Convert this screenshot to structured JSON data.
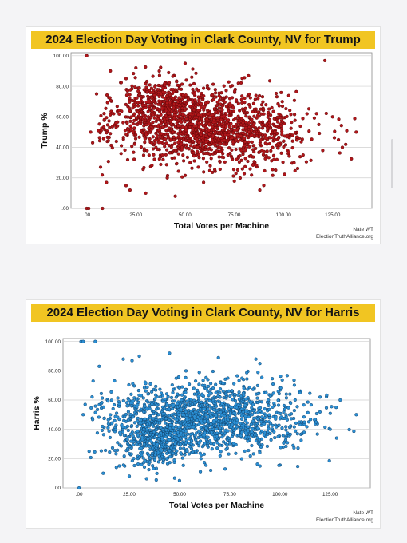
{
  "chart_data": [
    {
      "type": "scatter",
      "title": "2024 Election Day Voting in Clark County, NV for Trump",
      "xlabel": "Total Votes per Machine",
      "ylabel": "Trump %",
      "xticks": [
        ".00",
        "25.00",
        "50.00",
        "75.00",
        "100.00",
        "125.00"
      ],
      "yticks": [
        ".00",
        "20.00",
        "40.00",
        "60.00",
        "80.00",
        "100.00"
      ],
      "xlim": [
        -8,
        145
      ],
      "ylim": [
        0,
        102
      ],
      "grid": "horizontal",
      "marker_color": "#b0161a",
      "marker_edge": "#5a0607",
      "credit_line1": "Nate WT",
      "credit_line2": "ElectionTruthAlliance.org",
      "cluster": {
        "center_x": 62,
        "center_y": 52,
        "spread_x": 24,
        "spread_y": 12,
        "n": 1700,
        "seed": 11,
        "upper_lobe_x": 38,
        "upper_lobe_y": 70
      },
      "points": [
        [
          0,
          100
        ],
        [
          0,
          0
        ],
        [
          1,
          0
        ],
        [
          8,
          0
        ],
        [
          2,
          50
        ],
        [
          3,
          43
        ],
        [
          5,
          75
        ],
        [
          7,
          27
        ],
        [
          10,
          17
        ],
        [
          12,
          90
        ],
        [
          137,
          50
        ],
        [
          130,
          40
        ],
        [
          128,
          45
        ],
        [
          120,
          38
        ],
        [
          110,
          35
        ],
        [
          112,
          62
        ],
        [
          125,
          60
        ],
        [
          118,
          55
        ],
        [
          90,
          15
        ],
        [
          88,
          12
        ],
        [
          45,
          8
        ],
        [
          30,
          10
        ],
        [
          22,
          12
        ],
        [
          20,
          85
        ],
        [
          25,
          92
        ],
        [
          50,
          95
        ]
      ]
    },
    {
      "type": "scatter",
      "title": "2024 Election Day Voting in Clark County, NV for Harris",
      "xlabel": "Total Votes per Machine",
      "ylabel": "Harris %",
      "xticks": [
        ".00",
        "25.00",
        "50.00",
        "75.00",
        "100.00",
        "125.00"
      ],
      "yticks": [
        ".00",
        "20.00",
        "40.00",
        "60.00",
        "80.00",
        "100.00"
      ],
      "xlim": [
        -8,
        145
      ],
      "ylim": [
        0,
        102
      ],
      "grid": "horizontal",
      "marker_color": "#2b8fd4",
      "marker_edge": "#0e3e66",
      "credit_line1": "Nate WT",
      "credit_line2": "ElectionTruthAlliance.org",
      "cluster": {
        "center_x": 62,
        "center_y": 48,
        "spread_x": 24,
        "spread_y": 12,
        "n": 1700,
        "seed": 23,
        "upper_lobe_x": 38,
        "upper_lobe_y": 30
      },
      "points": [
        [
          0,
          0
        ],
        [
          1,
          100
        ],
        [
          2,
          100
        ],
        [
          8,
          100
        ],
        [
          2,
          50
        ],
        [
          3,
          57
        ],
        [
          5,
          25
        ],
        [
          7,
          73
        ],
        [
          10,
          83
        ],
        [
          12,
          10
        ],
        [
          138,
          50
        ],
        [
          130,
          60
        ],
        [
          128,
          55
        ],
        [
          120,
          62
        ],
        [
          110,
          65
        ],
        [
          112,
          38
        ],
        [
          125,
          40
        ],
        [
          118,
          45
        ],
        [
          88,
          88
        ],
        [
          90,
          85
        ],
        [
          45,
          92
        ],
        [
          30,
          90
        ],
        [
          22,
          88
        ],
        [
          20,
          15
        ],
        [
          25,
          8
        ],
        [
          50,
          5
        ]
      ]
    }
  ]
}
